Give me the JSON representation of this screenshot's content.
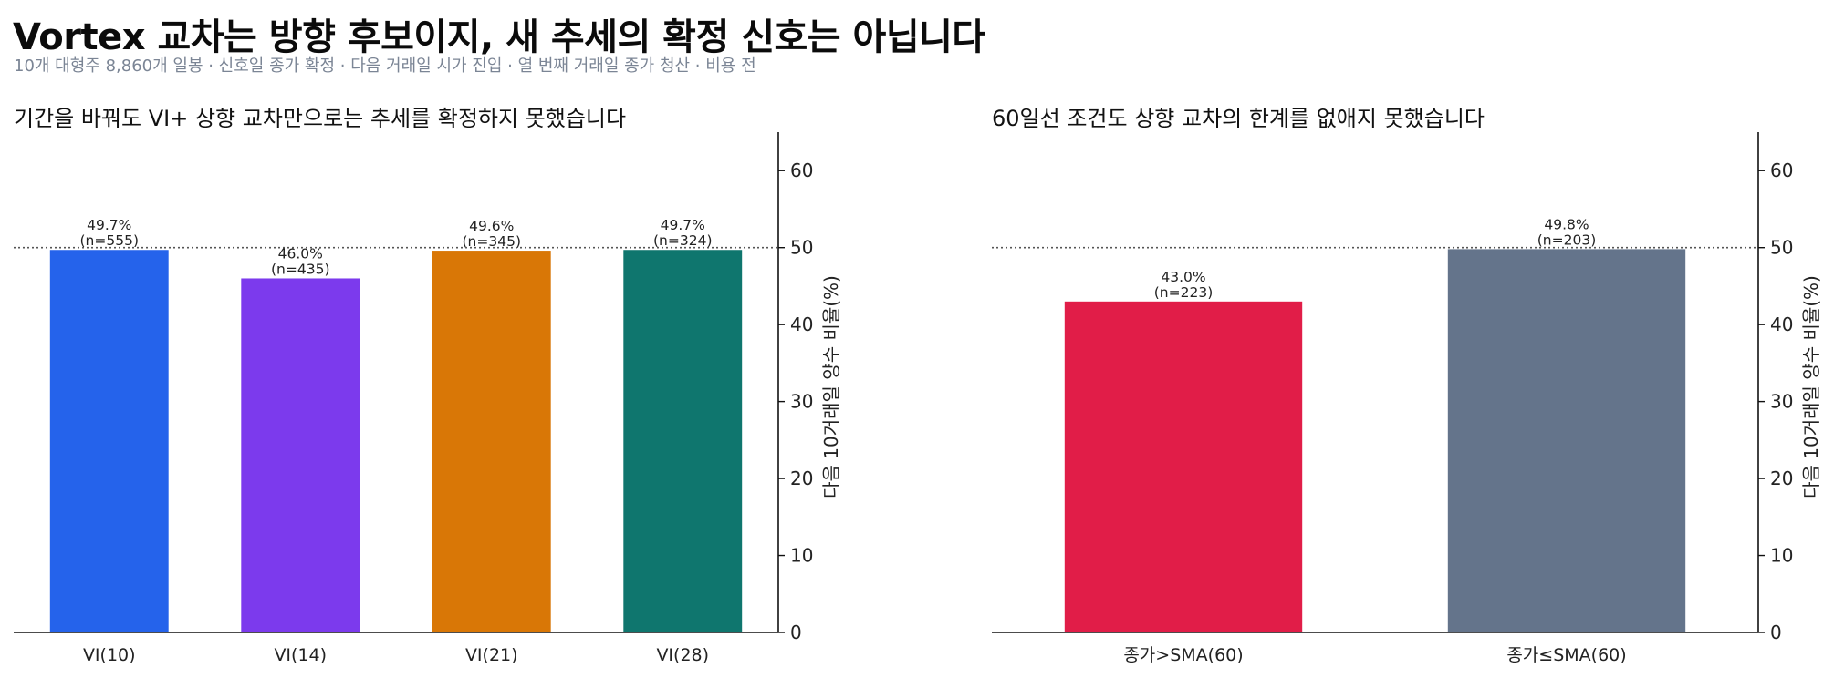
{
  "title": "Vortex 교차는 방향 후보이지, 새 추세의 확정 신호는 아닙니다",
  "subtitle": "10개 대형주 8,860개 일봉 · 신호일 종가 확정 · 다음 거래일 시가 진입 · 열 번째 거래일 종가 청산 · 비용 전",
  "chart_data": [
    {
      "type": "bar",
      "title": "기간을 바꿔도 VI+ 상향 교차만으로는 추세를 확정하지 못했습니다",
      "ylabel": "다음 10거래일 양수 비율(%)",
      "ylim": [
        0,
        65
      ],
      "yticks": [
        0,
        10,
        20,
        30,
        40,
        50,
        60
      ],
      "reference_line": 50,
      "y_axis_side": "right",
      "grid": false,
      "categories": [
        "VI(10)",
        "VI(14)",
        "VI(21)",
        "VI(28)"
      ],
      "values": [
        49.7,
        46.0,
        49.6,
        49.7
      ],
      "n": [
        "(n=555)",
        "(n=435)",
        "(n=345)",
        "(n=324)"
      ],
      "value_labels": [
        "49.7%",
        "46.0%",
        "49.6%",
        "49.7%"
      ],
      "colors": [
        "#2563eb",
        "#7c3aed",
        "#d97706",
        "#0f766e"
      ]
    },
    {
      "type": "bar",
      "title": "60일선 조건도 상향 교차의 한계를 없애지 못했습니다",
      "ylabel": "다음 10거래일 양수 비율(%)",
      "ylim": [
        0,
        65
      ],
      "yticks": [
        0,
        10,
        20,
        30,
        40,
        50,
        60
      ],
      "reference_line": 50,
      "y_axis_side": "right",
      "grid": false,
      "categories": [
        "종가>SMA(60)",
        "종가≤SMA(60)"
      ],
      "values": [
        43.0,
        49.8
      ],
      "n": [
        "(n=223)",
        "(n=203)"
      ],
      "value_labels": [
        "43.0%",
        "49.8%"
      ],
      "colors": [
        "#e11d48",
        "#64748b"
      ]
    }
  ]
}
